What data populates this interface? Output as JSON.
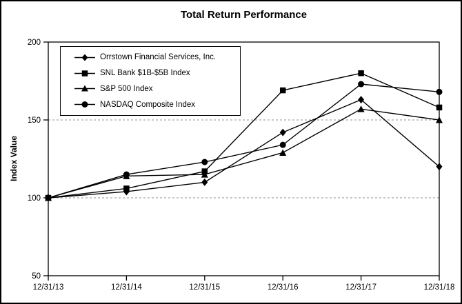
{
  "chart_data": {
    "type": "line",
    "title": "Total Return Performance",
    "ylabel": "Index Value",
    "xlabel": "",
    "categories": [
      "12/31/13",
      "12/31/14",
      "12/31/15",
      "12/31/16",
      "12/31/17",
      "12/31/18"
    ],
    "series": [
      {
        "name": "Orrstown Financial Services, Inc.",
        "marker": "diamond",
        "values": [
          100,
          104,
          110,
          142,
          163,
          120
        ]
      },
      {
        "name": "SNL Bank $1B-$5B Index",
        "marker": "square",
        "values": [
          100,
          106,
          117,
          169,
          180,
          158
        ]
      },
      {
        "name": "S&P 500 Index",
        "marker": "triangle",
        "values": [
          100,
          114,
          115,
          129,
          157,
          150
        ]
      },
      {
        "name": "NASDAQ Composite Index",
        "marker": "circle",
        "values": [
          100,
          115,
          123,
          134,
          173,
          168
        ]
      }
    ],
    "ylim": [
      50,
      200
    ],
    "yticks": [
      200,
      150,
      100,
      50
    ],
    "gridlines": [
      150,
      100
    ],
    "grid_style": "dashed-gray-horizontal",
    "legend_position": "top-left-inside",
    "line_color": "#000000",
    "background_color": "#ffffff"
  }
}
